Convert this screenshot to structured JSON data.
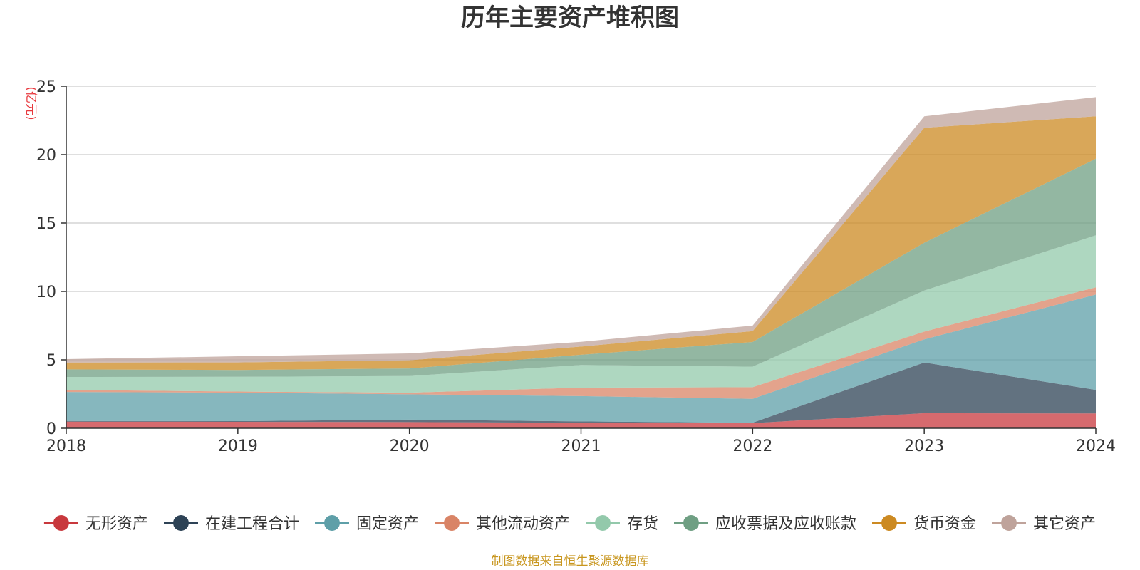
{
  "chart_data": {
    "type": "area",
    "stacked": true,
    "title": "历年主要资产堆积图",
    "unit": "(亿元)",
    "unit_color": "#e8383d",
    "x": [
      "2018",
      "2019",
      "2020",
      "2021",
      "2022",
      "2023",
      "2024"
    ],
    "ylim": [
      0,
      25
    ],
    "yticks": [
      "0",
      "5",
      "10",
      "15",
      "20",
      "25"
    ],
    "grid": true,
    "legend_position": "bottom",
    "series": [
      {
        "name": "无形资产",
        "color": "#c8383d",
        "values": [
          0.48,
          0.47,
          0.45,
          0.4,
          0.37,
          1.1,
          1.08
        ]
      },
      {
        "name": "在建工程合计",
        "color": "#2e4356",
        "values": [
          0.05,
          0.05,
          0.18,
          0.1,
          0.03,
          3.7,
          1.72
        ]
      },
      {
        "name": "固定资产",
        "color": "#5e9fa8",
        "values": [
          2.12,
          2.08,
          1.85,
          1.85,
          1.75,
          1.7,
          6.97
        ]
      },
      {
        "name": "其他流动资产",
        "color": "#d98466",
        "values": [
          0.15,
          0.08,
          0.12,
          0.62,
          0.85,
          0.56,
          0.53
        ]
      },
      {
        "name": "存货",
        "color": "#93c9ab",
        "values": [
          0.95,
          1.08,
          1.22,
          1.65,
          1.5,
          3.0,
          3.8
        ]
      },
      {
        "name": "应收票据及应收账款",
        "color": "#6f9f83",
        "values": [
          0.55,
          0.5,
          0.55,
          0.75,
          1.8,
          3.5,
          5.6
        ]
      },
      {
        "name": "货币资金",
        "color": "#cc8a22",
        "values": [
          0.5,
          0.55,
          0.6,
          0.6,
          0.8,
          8.4,
          3.1
        ]
      },
      {
        "name": "其它资产",
        "color": "#bfa39b",
        "values": [
          0.25,
          0.45,
          0.5,
          0.35,
          0.4,
          0.84,
          1.4
        ]
      }
    ],
    "source": "制图数据来自恒生聚源数据库"
  }
}
